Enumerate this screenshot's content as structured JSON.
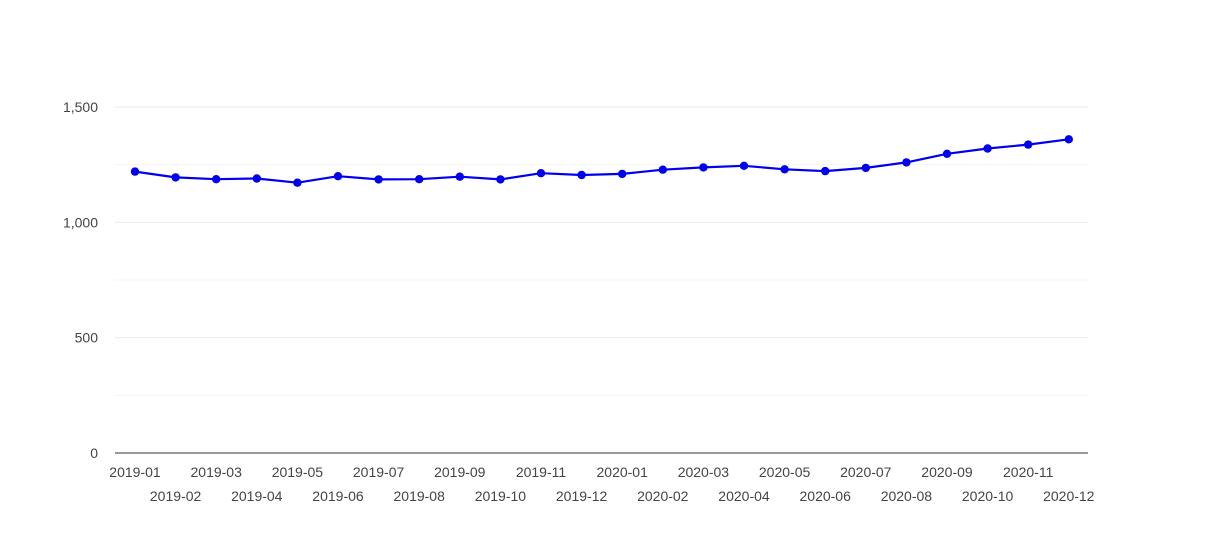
{
  "chart_data": {
    "type": "line",
    "title": "",
    "xlabel": "",
    "ylabel": "",
    "categories": [
      "2019-01",
      "2019-02",
      "2019-03",
      "2019-04",
      "2019-05",
      "2019-06",
      "2019-07",
      "2019-08",
      "2019-09",
      "2019-10",
      "2019-11",
      "2019-12",
      "2020-01",
      "2020-02",
      "2020-03",
      "2020-04",
      "2020-05",
      "2020-06",
      "2020-07",
      "2020-08",
      "2020-09",
      "2020-10",
      "2020-11",
      "2020-12"
    ],
    "series": [
      {
        "values": [
          1220,
          1195,
          1187,
          1190,
          1172,
          1200,
          1186,
          1187,
          1198,
          1186,
          1213,
          1205,
          1210,
          1228,
          1238,
          1245,
          1230,
          1222,
          1236,
          1260,
          1297,
          1320,
          1337,
          1360
        ],
        "color": "#0000ee"
      }
    ],
    "ylim": [
      0,
      1500
    ],
    "yticks": [
      0,
      500,
      1000,
      1500
    ],
    "ytick_labels": [
      "0",
      "500",
      "1,000",
      "1,500"
    ],
    "grid": true,
    "legend": "none"
  }
}
